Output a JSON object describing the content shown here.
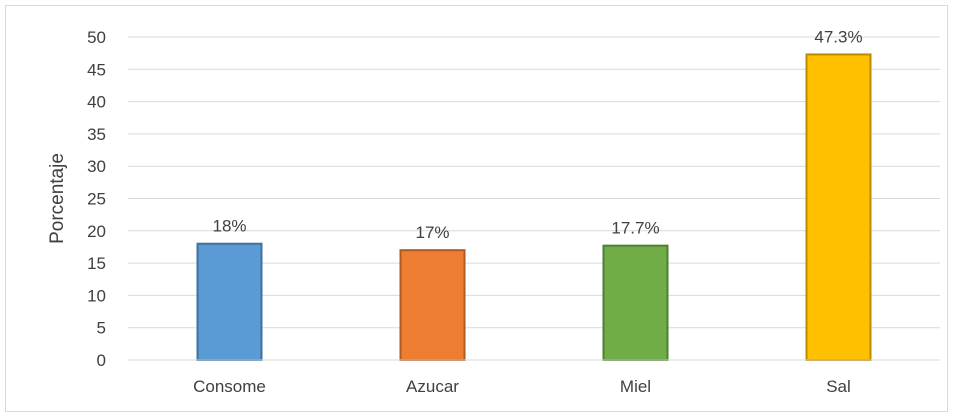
{
  "chart_data": {
    "type": "bar",
    "categories": [
      "Consome",
      "Azucar",
      "Miel",
      "Sal"
    ],
    "values": [
      18,
      17,
      17.7,
      47.3
    ],
    "data_labels": [
      "18%",
      "17%",
      "17.7%",
      "47.3%"
    ],
    "colors": [
      "#5b9bd5",
      "#ed7d31",
      "#70ad47",
      "#ffc000"
    ],
    "border_colors": [
      "#41719c",
      "#ae5a21",
      "#507e32",
      "#bc8c00"
    ],
    "title": "",
    "xlabel": "",
    "ylabel": "Porcentaje",
    "ylim": [
      0,
      50
    ],
    "yticks": [
      0,
      5,
      10,
      15,
      20,
      25,
      30,
      35,
      40,
      45,
      50
    ],
    "grid": true,
    "legend": "none"
  }
}
